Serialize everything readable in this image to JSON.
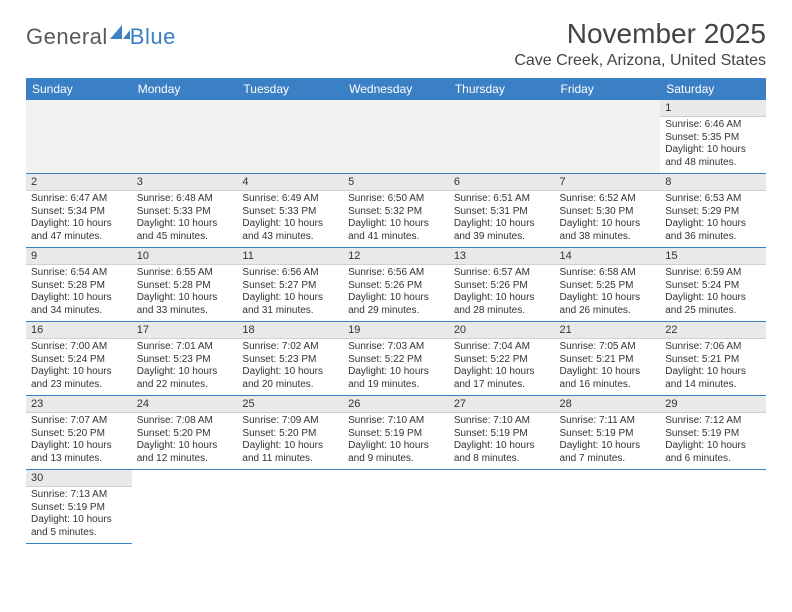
{
  "logo": {
    "part1": "General",
    "part2": "Blue"
  },
  "title": "November 2025",
  "location": "Cave Creek, Arizona, United States",
  "colors": {
    "header_bg": "#3b7fc4",
    "header_text": "#ffffff",
    "daynum_bg": "#e9e9e9",
    "row_divider": "#3b7fc4",
    "text": "#333333",
    "title_text": "#444444"
  },
  "dow": [
    "Sunday",
    "Monday",
    "Tuesday",
    "Wednesday",
    "Thursday",
    "Friday",
    "Saturday"
  ],
  "weeks": [
    [
      null,
      null,
      null,
      null,
      null,
      null,
      {
        "n": "1",
        "sr": "Sunrise: 6:46 AM",
        "ss": "Sunset: 5:35 PM",
        "dl": "Daylight: 10 hours and 48 minutes."
      }
    ],
    [
      {
        "n": "2",
        "sr": "Sunrise: 6:47 AM",
        "ss": "Sunset: 5:34 PM",
        "dl": "Daylight: 10 hours and 47 minutes."
      },
      {
        "n": "3",
        "sr": "Sunrise: 6:48 AM",
        "ss": "Sunset: 5:33 PM",
        "dl": "Daylight: 10 hours and 45 minutes."
      },
      {
        "n": "4",
        "sr": "Sunrise: 6:49 AM",
        "ss": "Sunset: 5:33 PM",
        "dl": "Daylight: 10 hours and 43 minutes."
      },
      {
        "n": "5",
        "sr": "Sunrise: 6:50 AM",
        "ss": "Sunset: 5:32 PM",
        "dl": "Daylight: 10 hours and 41 minutes."
      },
      {
        "n": "6",
        "sr": "Sunrise: 6:51 AM",
        "ss": "Sunset: 5:31 PM",
        "dl": "Daylight: 10 hours and 39 minutes."
      },
      {
        "n": "7",
        "sr": "Sunrise: 6:52 AM",
        "ss": "Sunset: 5:30 PM",
        "dl": "Daylight: 10 hours and 38 minutes."
      },
      {
        "n": "8",
        "sr": "Sunrise: 6:53 AM",
        "ss": "Sunset: 5:29 PM",
        "dl": "Daylight: 10 hours and 36 minutes."
      }
    ],
    [
      {
        "n": "9",
        "sr": "Sunrise: 6:54 AM",
        "ss": "Sunset: 5:28 PM",
        "dl": "Daylight: 10 hours and 34 minutes."
      },
      {
        "n": "10",
        "sr": "Sunrise: 6:55 AM",
        "ss": "Sunset: 5:28 PM",
        "dl": "Daylight: 10 hours and 33 minutes."
      },
      {
        "n": "11",
        "sr": "Sunrise: 6:56 AM",
        "ss": "Sunset: 5:27 PM",
        "dl": "Daylight: 10 hours and 31 minutes."
      },
      {
        "n": "12",
        "sr": "Sunrise: 6:56 AM",
        "ss": "Sunset: 5:26 PM",
        "dl": "Daylight: 10 hours and 29 minutes."
      },
      {
        "n": "13",
        "sr": "Sunrise: 6:57 AM",
        "ss": "Sunset: 5:26 PM",
        "dl": "Daylight: 10 hours and 28 minutes."
      },
      {
        "n": "14",
        "sr": "Sunrise: 6:58 AM",
        "ss": "Sunset: 5:25 PM",
        "dl": "Daylight: 10 hours and 26 minutes."
      },
      {
        "n": "15",
        "sr": "Sunrise: 6:59 AM",
        "ss": "Sunset: 5:24 PM",
        "dl": "Daylight: 10 hours and 25 minutes."
      }
    ],
    [
      {
        "n": "16",
        "sr": "Sunrise: 7:00 AM",
        "ss": "Sunset: 5:24 PM",
        "dl": "Daylight: 10 hours and 23 minutes."
      },
      {
        "n": "17",
        "sr": "Sunrise: 7:01 AM",
        "ss": "Sunset: 5:23 PM",
        "dl": "Daylight: 10 hours and 22 minutes."
      },
      {
        "n": "18",
        "sr": "Sunrise: 7:02 AM",
        "ss": "Sunset: 5:23 PM",
        "dl": "Daylight: 10 hours and 20 minutes."
      },
      {
        "n": "19",
        "sr": "Sunrise: 7:03 AM",
        "ss": "Sunset: 5:22 PM",
        "dl": "Daylight: 10 hours and 19 minutes."
      },
      {
        "n": "20",
        "sr": "Sunrise: 7:04 AM",
        "ss": "Sunset: 5:22 PM",
        "dl": "Daylight: 10 hours and 17 minutes."
      },
      {
        "n": "21",
        "sr": "Sunrise: 7:05 AM",
        "ss": "Sunset: 5:21 PM",
        "dl": "Daylight: 10 hours and 16 minutes."
      },
      {
        "n": "22",
        "sr": "Sunrise: 7:06 AM",
        "ss": "Sunset: 5:21 PM",
        "dl": "Daylight: 10 hours and 14 minutes."
      }
    ],
    [
      {
        "n": "23",
        "sr": "Sunrise: 7:07 AM",
        "ss": "Sunset: 5:20 PM",
        "dl": "Daylight: 10 hours and 13 minutes."
      },
      {
        "n": "24",
        "sr": "Sunrise: 7:08 AM",
        "ss": "Sunset: 5:20 PM",
        "dl": "Daylight: 10 hours and 12 minutes."
      },
      {
        "n": "25",
        "sr": "Sunrise: 7:09 AM",
        "ss": "Sunset: 5:20 PM",
        "dl": "Daylight: 10 hours and 11 minutes."
      },
      {
        "n": "26",
        "sr": "Sunrise: 7:10 AM",
        "ss": "Sunset: 5:19 PM",
        "dl": "Daylight: 10 hours and 9 minutes."
      },
      {
        "n": "27",
        "sr": "Sunrise: 7:10 AM",
        "ss": "Sunset: 5:19 PM",
        "dl": "Daylight: 10 hours and 8 minutes."
      },
      {
        "n": "28",
        "sr": "Sunrise: 7:11 AM",
        "ss": "Sunset: 5:19 PM",
        "dl": "Daylight: 10 hours and 7 minutes."
      },
      {
        "n": "29",
        "sr": "Sunrise: 7:12 AM",
        "ss": "Sunset: 5:19 PM",
        "dl": "Daylight: 10 hours and 6 minutes."
      }
    ],
    [
      {
        "n": "30",
        "sr": "Sunrise: 7:13 AM",
        "ss": "Sunset: 5:19 PM",
        "dl": "Daylight: 10 hours and 5 minutes."
      },
      null,
      null,
      null,
      null,
      null,
      null
    ]
  ]
}
